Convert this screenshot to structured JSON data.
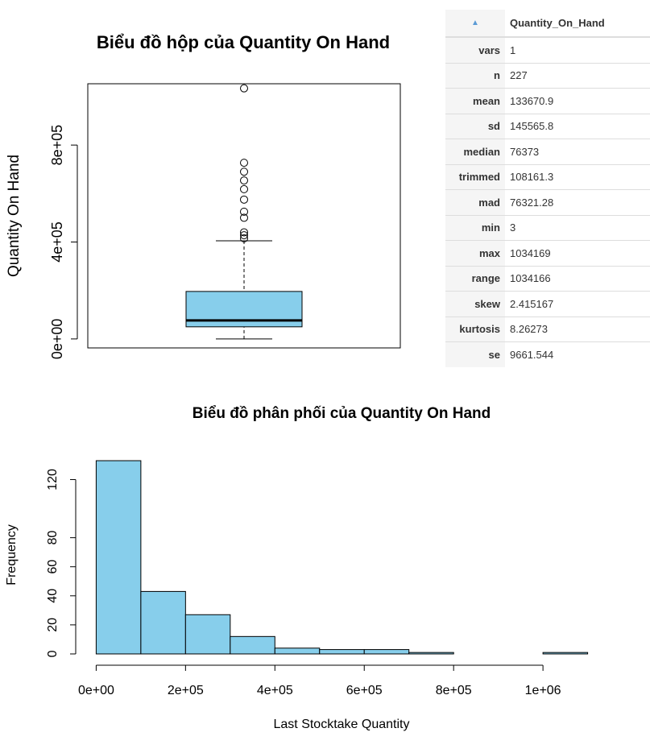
{
  "chart_data": [
    {
      "type": "boxplot",
      "title": "Biểu đồ hộp của Quantity On Hand",
      "y_label": "Quantity On Hand",
      "min": 3,
      "q1": 50000,
      "median": 76373,
      "q3": 196000,
      "max": 405000,
      "outliers": [
        415000,
        428000,
        440000,
        500000,
        525000,
        575000,
        618000,
        654000,
        690000,
        727000,
        1034169
      ],
      "color": "#87ceeb",
      "ylim": [
        -37000,
        1053000
      ],
      "yticks": [
        {
          "value": 0,
          "label": "0e+00"
        },
        {
          "value": 400000,
          "label": "4e+05"
        },
        {
          "value": 800000,
          "label": "8e+05"
        }
      ]
    },
    {
      "type": "histogram",
      "title": "Biểu đồ phân phối của Quantity On Hand",
      "x_label": "Last Stocktake Quantity",
      "y_label": "Frequency",
      "bins": [
        0,
        100000,
        200000,
        300000,
        400000,
        500000,
        600000,
        700000,
        800000,
        900000,
        1000000,
        1100000
      ],
      "values": [
        133,
        43,
        27,
        12,
        4,
        3,
        3,
        1,
        0,
        0,
        1
      ],
      "color": "#87ceeb",
      "xlim": [
        -44000,
        1144000
      ],
      "ylim": [
        -5,
        138
      ],
      "xticks": [
        {
          "value": 0,
          "label": "0e+00"
        },
        {
          "value": 200000,
          "label": "2e+05"
        },
        {
          "value": 400000,
          "label": "4e+05"
        },
        {
          "value": 600000,
          "label": "6e+05"
        },
        {
          "value": 800000,
          "label": "8e+05"
        },
        {
          "value": 1000000,
          "label": "1e+06"
        }
      ],
      "yticks": [
        0,
        20,
        40,
        60,
        80,
        120
      ]
    }
  ],
  "table": {
    "header": "Quantity_On_Hand",
    "rows": [
      [
        "vars",
        "1"
      ],
      [
        "n",
        "227"
      ],
      [
        "mean",
        "133670.9"
      ],
      [
        "sd",
        "145565.8"
      ],
      [
        "median",
        "76373"
      ],
      [
        "trimmed",
        "108161.3"
      ],
      [
        "mad",
        "76321.28"
      ],
      [
        "min",
        "3"
      ],
      [
        "max",
        "1034169"
      ],
      [
        "range",
        "1034166"
      ],
      [
        "skew",
        "2.415167"
      ],
      [
        "kurtosis",
        "8.26273"
      ],
      [
        "se",
        "9661.544"
      ]
    ]
  }
}
